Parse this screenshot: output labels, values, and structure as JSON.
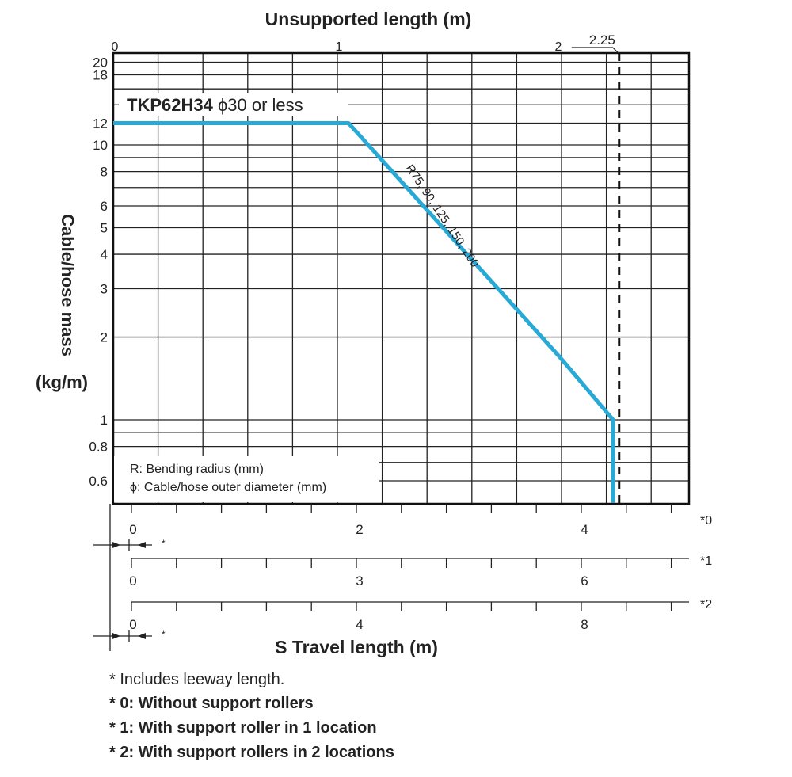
{
  "chart_data": {
    "type": "line",
    "title_top_axis": "Unsupported length (m)",
    "ylabel": "Cable/hose mass",
    "ylabel_unit": "(kg/m)",
    "xlabel": "S Travel length (m)",
    "xlim": [
      0,
      2.57
    ],
    "ylim": [
      0.5,
      20
    ],
    "yscale": "log",
    "top_ticks": [
      {
        "v": 0,
        "label": "0"
      },
      {
        "v": 1,
        "label": "1"
      },
      {
        "v": 2,
        "label": "2"
      }
    ],
    "top_marker": {
      "v": 2.25,
      "label": "2.25"
    },
    "y_ticks": [
      {
        "v": 20,
        "label": "20"
      },
      {
        "v": 18,
        "label": "18"
      },
      {
        "v": 12,
        "label": "12"
      },
      {
        "v": 10,
        "label": "10"
      },
      {
        "v": 8,
        "label": "8"
      },
      {
        "v": 6,
        "label": "6"
      },
      {
        "v": 5,
        "label": "5"
      },
      {
        "v": 4,
        "label": "4"
      },
      {
        "v": 3,
        "label": "3"
      },
      {
        "v": 2,
        "label": "2"
      },
      {
        "v": 1,
        "label": "1"
      },
      {
        "v": 0.8,
        "label": "0.8"
      },
      {
        "v": 0.6,
        "label": "0.6"
      }
    ],
    "y_grid": [
      0.6,
      0.7,
      0.8,
      0.9,
      1,
      2,
      3,
      4,
      5,
      6,
      7,
      8,
      9,
      10,
      12,
      14,
      16,
      18,
      20
    ],
    "x_grid_step": 0.2,
    "series": [
      {
        "name": "TKP62H34 φ30 or less",
        "color": "#29a9d6",
        "points": [
          [
            0,
            12
          ],
          [
            1.05,
            12
          ],
          [
            1.99,
            1.7
          ],
          [
            2.23,
            1.0
          ],
          [
            2.23,
            0.5
          ]
        ]
      }
    ],
    "series_label": "TKP62H34 ϕ30 or less",
    "curve_annotation": "R75, 90, 125, 150, 200",
    "travel_axes": [
      {
        "id": "*0",
        "label": "*0",
        "max": 5,
        "tick_step": 0.4,
        "labels": [
          {
            "v": 0,
            "label": "0"
          },
          {
            "v": 2,
            "label": "2"
          },
          {
            "v": 4,
            "label": "4"
          }
        ]
      },
      {
        "id": "*1",
        "label": "*1",
        "max": 7.5,
        "tick_step": 0.6,
        "labels": [
          {
            "v": 0,
            "label": "0"
          },
          {
            "v": 3,
            "label": "3"
          },
          {
            "v": 6,
            "label": "6"
          }
        ]
      },
      {
        "id": "*2",
        "label": "*2",
        "max": 10,
        "tick_step": 0.8,
        "labels": [
          {
            "v": 0,
            "label": "0"
          },
          {
            "v": 4,
            "label": "4"
          },
          {
            "v": 8,
            "label": "8"
          }
        ]
      }
    ],
    "asterisk": "*",
    "legend": [
      "R: Bending radius (mm)",
      "ϕ: Cable/hose outer diameter (mm)"
    ]
  },
  "footnotes": [
    "* Includes leeway length.",
    "* 0: Without support rollers",
    "* 1: With support roller in 1 location",
    "* 2: With support rollers in 2 locations"
  ]
}
